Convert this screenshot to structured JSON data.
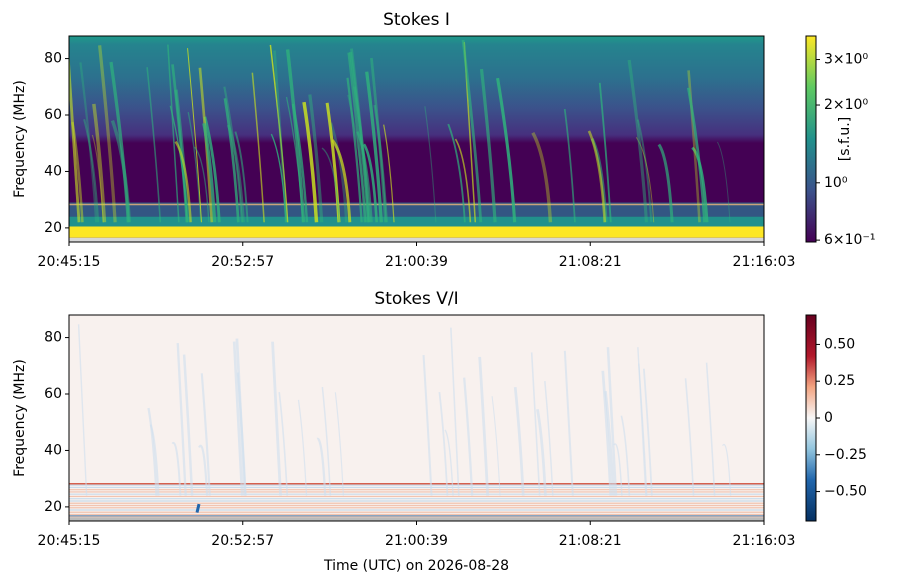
{
  "chart_data": [
    {
      "type": "heatmap",
      "title": "Stokes I",
      "ylabel": "Frequency (MHz)",
      "ylim": [
        15,
        88
      ],
      "yticks": [
        20,
        40,
        60,
        80
      ],
      "xlim": [
        "20:45:15",
        "21:16:03"
      ],
      "xticks": [
        "20:45:15",
        "20:52:57",
        "21:00:39",
        "21:08:21",
        "21:16:03"
      ],
      "colorbar": {
        "label": "[s.f.u.]",
        "scale": "log",
        "colormap": "viridis",
        "lim": [
          0.59,
          3.7
        ],
        "ticks": [
          {
            "value": 0.6,
            "label": "6×10⁻¹"
          },
          {
            "value": 1,
            "label": "10⁰"
          },
          {
            "value": 2,
            "label": "2×10⁰"
          },
          {
            "value": 3,
            "label": "3×10⁰"
          }
        ]
      }
    },
    {
      "type": "heatmap",
      "title": "Stokes V/I",
      "ylabel": "Frequency (MHz)",
      "xlabel": "Time (UTC) on 2026-08-28",
      "ylim": [
        15,
        88
      ],
      "yticks": [
        20,
        40,
        60,
        80
      ],
      "xlim": [
        "20:45:15",
        "21:16:03"
      ],
      "xticks": [
        "20:45:15",
        "20:52:57",
        "21:00:39",
        "21:08:21",
        "21:16:03"
      ],
      "colorbar": {
        "scale": "linear",
        "colormap": "RdBu_r",
        "lim": [
          -0.7,
          0.7
        ],
        "ticks": [
          {
            "value": -0.5,
            "label": "−0.50"
          },
          {
            "value": -0.25,
            "label": "−0.25"
          },
          0,
          {
            "value": 0.25,
            "label": "0.25"
          },
          {
            "value": 0.5,
            "label": "0.50"
          }
        ]
      }
    }
  ]
}
